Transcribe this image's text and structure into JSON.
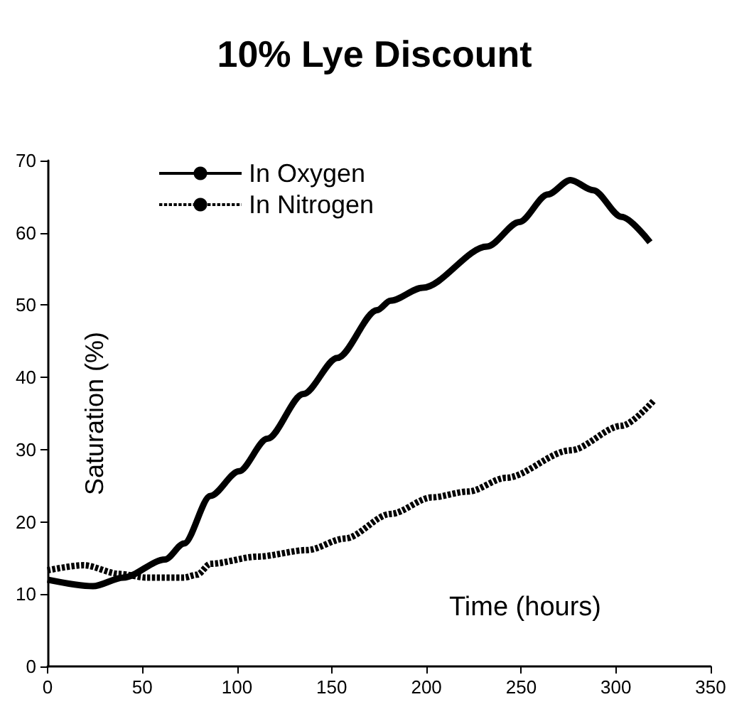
{
  "chart_data": {
    "type": "line",
    "title": "10% Lye Discount",
    "xlabel": "Time (hours)",
    "ylabel": "Saturation (%)",
    "xlim": [
      0,
      350
    ],
    "xticks": [
      0,
      50,
      100,
      150,
      200,
      250,
      300,
      350
    ],
    "ylim": [
      0,
      70
    ],
    "yticks": [
      0,
      10,
      20,
      30,
      40,
      50,
      60,
      70
    ],
    "grid": false,
    "legend": "top left",
    "marker": "none",
    "series": [
      {
        "name": "In Oxygen",
        "color": "#000000",
        "line_style": "solid",
        "x": [
          0,
          24,
          40,
          62,
          72,
          86,
          101,
          116,
          135,
          153,
          174,
          181,
          198,
          232,
          249,
          264,
          276,
          288,
          303,
          318
        ],
        "values": [
          12.0,
          11.1,
          12.3,
          14.8,
          17,
          23.6,
          27,
          31.5,
          37.7,
          42.7,
          49.3,
          50.6,
          52.4,
          58.1,
          61.5,
          65.3,
          67.3,
          65.9,
          62.2,
          58.7
        ]
      },
      {
        "name": "In Nitrogen",
        "color": "#000000",
        "line_style": "dashed",
        "x": [
          0,
          19,
          38,
          52,
          72,
          79,
          86,
          111,
          137,
          157,
          181,
          203,
          222,
          242,
          276,
          303,
          320
        ],
        "values": [
          13.3,
          14.0,
          12.8,
          12.3,
          12.3,
          12.7,
          14.2,
          15.2,
          16.1,
          17.7,
          21.1,
          23.4,
          24.2,
          26.1,
          29.9,
          33.3,
          36.8
        ]
      }
    ]
  }
}
